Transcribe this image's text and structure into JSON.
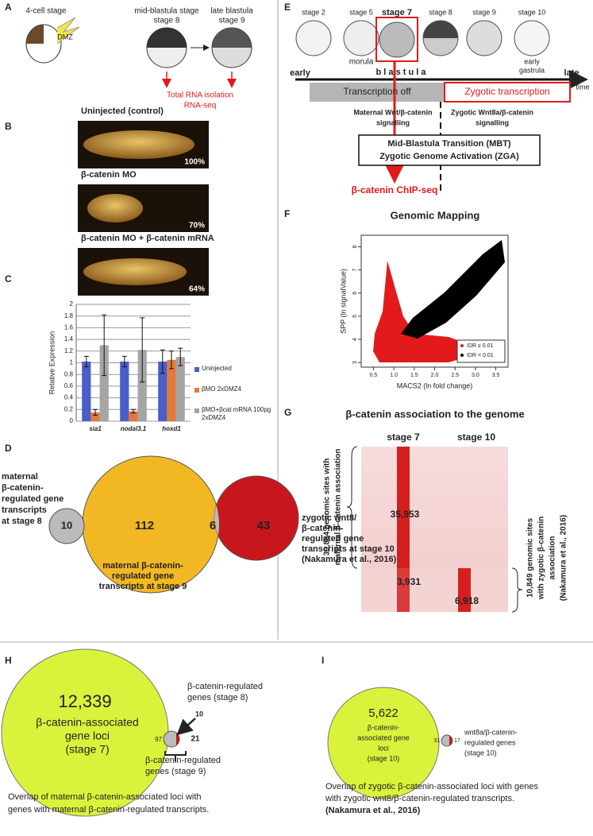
{
  "chart_data": [
    {
      "type": "bar",
      "categories": [
        "sia1",
        "nodal3.1",
        "hoxd1"
      ],
      "ylabel": "Relative Expression",
      "ylim": [
        0,
        2
      ],
      "yticks": [
        0,
        0.2,
        0.4,
        0.6,
        0.8,
        1,
        1.2,
        1.4,
        1.6,
        1.8,
        2
      ],
      "grid": true,
      "series": [
        {
          "name": "Uninjected",
          "color": "#4a5ec8",
          "values": [
            1.02,
            1.02,
            1.02
          ],
          "errors": [
            0.09,
            0.09,
            0.2
          ]
        },
        {
          "name": "βMO 2xDMZ4",
          "color": "#e07b39",
          "values": [
            0.15,
            0.17,
            1.05
          ],
          "errors": [
            0.05,
            0.03,
            0.15
          ]
        },
        {
          "name": "βMO+βcat mRNA 100pg 2xDMZ4",
          "color": "#a5a5a5",
          "values": [
            1.3,
            1.22,
            1.1
          ],
          "errors": [
            0.52,
            0.55,
            0.15
          ]
        }
      ]
    },
    {
      "type": "scatter",
      "title": "Genomic Mapping",
      "xlabel": "MACS2 (ln fold change)",
      "ylabel": "SPP (ln signalValue)",
      "xlim": [
        0.2,
        3.8
      ],
      "ylim": [
        2.8,
        8.5
      ],
      "xticks": [
        0.5,
        {
          "value": 1,
          "label": "1.0"
        },
        1.5,
        {
          "value": 2,
          "label": "2.0"
        },
        2.5,
        {
          "value": 3,
          "label": "3.0"
        },
        3.5
      ],
      "yticks": [
        3,
        4,
        5,
        6,
        7,
        8
      ],
      "legend_position": "lower right",
      "series": [
        {
          "name": "IDR ≥ 0.01",
          "color": "#e31a1c"
        },
        {
          "name": "IDR < 0.01",
          "color": "#000000"
        }
      ]
    }
  ],
  "panel_labels": [
    "A",
    "B",
    "C",
    "D",
    "E",
    "F",
    "G",
    "H",
    "I"
  ],
  "panel_a": {
    "stage_4cell": "4-cell stage",
    "dmz": "DMZ",
    "mid": [
      "mid-blastula stage",
      "stage 8"
    ],
    "late": [
      "late blastula",
      "stage 9"
    ],
    "output": [
      "Total RNA isolation",
      "RNA-seq"
    ]
  },
  "panel_b": [
    {
      "label": "Uninjected (control)",
      "percent": "100%"
    },
    {
      "label": "β-catenin MO",
      "percent": "70%"
    },
    {
      "label": "β-catenin MO + β-catenin mRNA",
      "percent": "64%"
    }
  ],
  "panel_d": {
    "counts": [
      10,
      112,
      6,
      43
    ],
    "left": [
      "maternal",
      "β-catenin-",
      "regulated gene",
      "transcripts",
      "at stage 8"
    ],
    "bottom": [
      "maternal β-catenin-",
      "regulated gene",
      "transcripts at stage 9"
    ],
    "right": [
      "zygotic wnt8/",
      "β-catenin-",
      "regulated gene",
      "transcripts at stage 10",
      "(Nakamura et al., 2016)"
    ]
  },
  "panel_e": {
    "stages": [
      "stage 2",
      "stage 5",
      "stage 7",
      "stage 8",
      "stage 9",
      "stage 10"
    ],
    "morula": "morula",
    "gastrula": [
      "early",
      "gastrula"
    ],
    "early": "early",
    "blastula": "b l a s t u l a",
    "late": "late",
    "time": "time",
    "off": "Transcription off",
    "zygotic": "Zygotic transcription",
    "maternal_signal": [
      "Maternal Wnt/β-catenin",
      "signalling"
    ],
    "zygotic_signal": [
      "Zygotic Wnt8a/β-catenin",
      "signalling"
    ],
    "mbt": [
      "Mid-Blastula Transition (MBT)",
      "Zygotic Genome Activation (ZGA)"
    ],
    "chip": "β-catenin ChIP-seq"
  },
  "panel_g": {
    "title": "β-catenin association to the genome",
    "stages": [
      "stage 7",
      "stage 10"
    ],
    "counts": [
      "35,953",
      "3,931",
      "6,918"
    ],
    "left": [
      "39,884 genomic sites with",
      "maternal β-catenin association"
    ],
    "right": [
      "10,849 genomic sites",
      "with zygotic β-catenin",
      "association",
      "(Nakamura et al., 2016)"
    ]
  },
  "panel_h": {
    "total": "12,339",
    "circle": [
      "β-catenin-associated",
      "gene loci",
      "(stage 7)"
    ],
    "small": [
      97,
      10,
      21
    ],
    "stage8": [
      "β-catenin-regulated",
      "genes (stage 8)"
    ],
    "stage9": [
      "β-catenin-regulated",
      "genes (stage 9)"
    ],
    "caption": [
      "Overlap of maternal β-catenin-associated loci with",
      "genes with maternal β-catenin-regulated transcripts."
    ]
  },
  "panel_i": {
    "total": "5,622",
    "circle": [
      "β-catenin-",
      "associated gene",
      "loci",
      "(stage 10)"
    ],
    "small": [
      31,
      17
    ],
    "label": [
      "wnt8a/β-catenin-",
      "regulated genes",
      "(stage 10)"
    ],
    "caption": [
      "Overlap of zygotic β-catenin-associated loci with genes",
      "with zygotic  wnt8/β-catenin-regulated transcripts.",
      "(Nakamura et al., 2016)"
    ]
  }
}
